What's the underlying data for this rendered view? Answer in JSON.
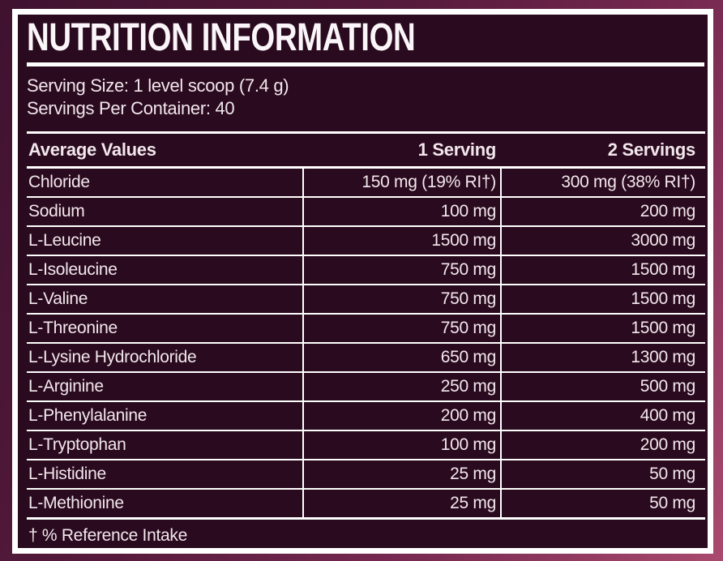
{
  "label": {
    "title": "NUTRITION INFORMATION",
    "serving_size": "Serving Size: 1 level scoop (7.4 g)",
    "servings_per_container": "Servings Per Container: 40",
    "columns": [
      "Average Values",
      "1 Serving",
      "2 Servings"
    ],
    "rows": [
      {
        "name": "Chloride",
        "serving1": "150 mg (19% RI†)",
        "serving2": "300 mg (38% RI†)"
      },
      {
        "name": "Sodium",
        "serving1": "100 mg",
        "serving2": "200 mg"
      },
      {
        "name": "L-Leucine",
        "serving1": "1500 mg",
        "serving2": "3000 mg"
      },
      {
        "name": "L-Isoleucine",
        "serving1": "750 mg",
        "serving2": "1500 mg"
      },
      {
        "name": "L-Valine",
        "serving1": "750 mg",
        "serving2": "1500 mg"
      },
      {
        "name": "L-Threonine",
        "serving1": "750 mg",
        "serving2": "1500 mg"
      },
      {
        "name": "L-Lysine Hydrochloride",
        "serving1": "650 mg",
        "serving2": "1300 mg"
      },
      {
        "name": "L-Arginine",
        "serving1": "250 mg",
        "serving2": "500 mg"
      },
      {
        "name": "L-Phenylalanine",
        "serving1": "200 mg",
        "serving2": "400 mg"
      },
      {
        "name": "L-Tryptophan",
        "serving1": "100 mg",
        "serving2": "200 mg"
      },
      {
        "name": "L-Histidine",
        "serving1": "25 mg",
        "serving2": "50 mg"
      },
      {
        "name": "L-Methionine",
        "serving1": "25 mg",
        "serving2": "50 mg"
      }
    ],
    "footnote": "† % Reference Intake",
    "colors": {
      "panel_background": "#2a0a1e",
      "border_and_rules": "#ffffff",
      "text": "#f2e7ed",
      "frame_gradient_start": "#3f1230",
      "frame_gradient_end": "#aa4a6e"
    }
  }
}
